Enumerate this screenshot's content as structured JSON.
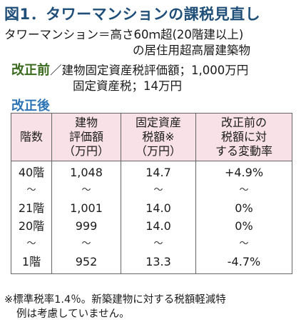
{
  "figure": {
    "title": "図1．タワーマンションの課税見直し"
  },
  "definition": {
    "line1": "タワーマンション＝高さ60ｍ超(20階建以上)",
    "line2": "の居住用超高層建築物"
  },
  "before": {
    "label": "改正前",
    "line1": "／建物固定資産税評価額；1,000万円",
    "line2": "固定資産税；14万円"
  },
  "after": {
    "label": "改正後"
  },
  "table": {
    "headers": {
      "floor": "階数",
      "valuation": [
        "建物",
        "評価額",
        "（万円）"
      ],
      "tax": [
        "固定資産",
        "税額※",
        "（万円）"
      ],
      "change": [
        "改正前の",
        "税額に対",
        "する変動率"
      ]
    },
    "rows": [
      {
        "floor": "40階",
        "valuation": "1,048",
        "tax": "14.7",
        "change": "+4.9%"
      },
      {
        "floor": "〜",
        "valuation": "〜",
        "tax": "〜",
        "change": "〜"
      },
      {
        "floor": "21階",
        "valuation": "1,001",
        "tax": "14.0",
        "change": "0%"
      },
      {
        "floor": "20階",
        "valuation": "999",
        "tax": "14.0",
        "change": "0%"
      },
      {
        "floor": "〜",
        "valuation": "〜",
        "tax": "〜",
        "change": "〜"
      },
      {
        "floor": "1階",
        "valuation": "952",
        "tax": "13.3",
        "change": "-4.7%"
      }
    ]
  },
  "note": {
    "line1": "※標準税率1.4％。新築建物に対する税額軽減特",
    "line2": "例は考慮していません。"
  }
}
